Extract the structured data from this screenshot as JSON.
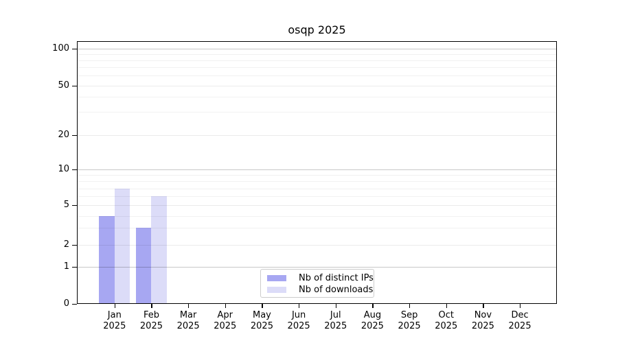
{
  "chart_data": {
    "type": "bar",
    "title": "osqp 2025",
    "x_categories": [
      {
        "month": "Jan",
        "year": "2025"
      },
      {
        "month": "Feb",
        "year": "2025"
      },
      {
        "month": "Mar",
        "year": "2025"
      },
      {
        "month": "Apr",
        "year": "2025"
      },
      {
        "month": "May",
        "year": "2025"
      },
      {
        "month": "Jun",
        "year": "2025"
      },
      {
        "month": "Jul",
        "year": "2025"
      },
      {
        "month": "Aug",
        "year": "2025"
      },
      {
        "month": "Sep",
        "year": "2025"
      },
      {
        "month": "Oct",
        "year": "2025"
      },
      {
        "month": "Nov",
        "year": "2025"
      },
      {
        "month": "Dec",
        "year": "2025"
      }
    ],
    "series": [
      {
        "name": "Nb of distinct IPs",
        "color": "#a7a7f2",
        "values": [
          4,
          3,
          0,
          0,
          0,
          0,
          0,
          0,
          0,
          0,
          0,
          0
        ]
      },
      {
        "name": "Nb of downloads",
        "color": "#dcdcf8",
        "values": [
          7,
          6,
          0,
          0,
          0,
          0,
          0,
          0,
          0,
          0,
          0,
          0
        ]
      }
    ],
    "y_axis": {
      "scale": "symlog",
      "tick_labels": [
        "100",
        "50",
        "20",
        "10",
        "5",
        "2",
        "1",
        "0"
      ],
      "tick_values": [
        100,
        50,
        20,
        10,
        5,
        2,
        1,
        0
      ],
      "range": [
        0,
        115
      ]
    },
    "grid": "horizontal major and log-minor gridlines",
    "legend_position": "bottom-center"
  }
}
